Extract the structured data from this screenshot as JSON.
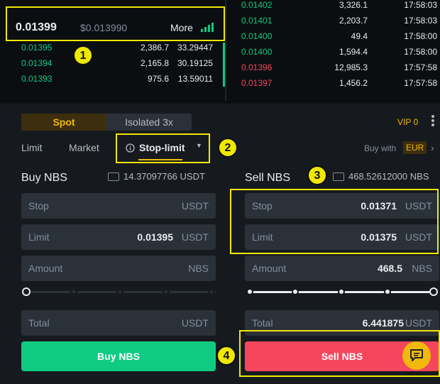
{
  "ticker": {
    "last_price": "0.01399",
    "usd_price": "$0.013990",
    "more_label": "More"
  },
  "orderbook_left": [
    {
      "price": "0.01395",
      "amount": "2,386.7",
      "total": "33.29447"
    },
    {
      "price": "0.01394",
      "amount": "2,165.8",
      "total": "30.19125"
    },
    {
      "price": "0.01393",
      "amount": "975.6",
      "total": "13.59011"
    }
  ],
  "trades": [
    {
      "price": "0.01402",
      "amount": "3,326.1",
      "time": "17:58:03",
      "side": "buy"
    },
    {
      "price": "0.01401",
      "amount": "2,203.7",
      "time": "17:58:03",
      "side": "buy"
    },
    {
      "price": "0.01400",
      "amount": "49.4",
      "time": "17:58:00",
      "side": "buy"
    },
    {
      "price": "0.01400",
      "amount": "1,594.4",
      "time": "17:58:00",
      "side": "buy"
    },
    {
      "price": "0.01396",
      "amount": "12,985.3",
      "time": "17:57:58",
      "side": "sell"
    },
    {
      "price": "0.01397",
      "amount": "1,456.2",
      "time": "17:57:58",
      "side": "sell"
    }
  ],
  "mode_tabs": {
    "spot": "Spot",
    "isolated": "Isolated 3x"
  },
  "vip_label": "VIP 0",
  "order_types": {
    "limit": "Limit",
    "market": "Market",
    "stop_limit": "Stop-limit"
  },
  "buy_with": {
    "label": "Buy with",
    "currency": "EUR"
  },
  "buy": {
    "title": "Buy NBS",
    "balance": "14.37097766 USDT",
    "stop": {
      "label": "Stop",
      "value": "",
      "unit": "USDT"
    },
    "limit": {
      "label": "Limit",
      "value": "0.01395",
      "unit": "USDT"
    },
    "amount": {
      "label": "Amount",
      "value": "",
      "unit": "NBS"
    },
    "total": {
      "label": "Total",
      "value": "",
      "unit": "USDT"
    },
    "slider_percent": 0,
    "button": "Buy NBS"
  },
  "sell": {
    "title": "Sell NBS",
    "balance": "468.52612000 NBS",
    "stop": {
      "label": "Stop",
      "value": "0.01371",
      "unit": "USDT"
    },
    "limit": {
      "label": "Limit",
      "value": "0.01375",
      "unit": "USDT"
    },
    "amount": {
      "label": "Amount",
      "value": "468.5",
      "unit": "NBS"
    },
    "total": {
      "label": "Total",
      "value": "6.441875",
      "unit": "USDT"
    },
    "slider_percent": 100,
    "button": "Sell NBS"
  },
  "annotations": [
    "1",
    "2",
    "3",
    "4"
  ],
  "colors": {
    "buy": "#0ecb81",
    "sell": "#f6465d",
    "accent": "#f0b90b",
    "highlight": "#f0e800"
  }
}
